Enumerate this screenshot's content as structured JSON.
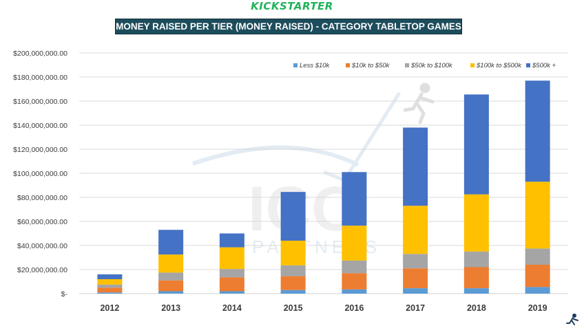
{
  "header": {
    "brand": "KICKSTARTER",
    "title": "MONEY RAISED PER TIER (MONEY RAISED) - CATEGORY TABLETOP GAMES"
  },
  "watermark": {
    "text_main": "ICO",
    "text_sub": "PARTNERS",
    "icon": "running-man-icon"
  },
  "colors": {
    "less_10k": "#5b9bd5",
    "10k_50k": "#ed7d31",
    "50k_100k": "#a5a5a5",
    "100k_500k": "#ffc000",
    "500k_plus": "#4472c4"
  },
  "chart_data": {
    "type": "bar",
    "stacked": true,
    "title": "MONEY RAISED PER TIER (MONEY RAISED) - CATEGORY TABLETOP GAMES",
    "categories": [
      "2012",
      "2013",
      "2014",
      "2015",
      "2016",
      "2017",
      "2018",
      "2019"
    ],
    "yticks": [
      "$-",
      "$20,000,000.00",
      "$40,000,000.00",
      "$60,000,000.00",
      "$80,000,000.00",
      "$100,000,000.00",
      "$120,000,000.00",
      "$140,000,000.00",
      "$160,000,000.00",
      "$180,000,000.00",
      "$200,000,000.00"
    ],
    "ylim": [
      0,
      200000000
    ],
    "grid": true,
    "legend_position": "top-right",
    "series": [
      {
        "name": "Less $10k",
        "color": "#5b9bd5",
        "values": [
          1000000,
          2000000,
          2000000,
          3000000,
          3500000,
          4500000,
          4500000,
          5500000
        ]
      },
      {
        "name": "$10k to $50k",
        "color": "#ed7d31",
        "values": [
          4000000,
          9000000,
          11500000,
          11500000,
          13500000,
          16500000,
          17500000,
          18500000
        ]
      },
      {
        "name": "$50k to $100k",
        "color": "#a5a5a5",
        "values": [
          2500000,
          6500000,
          7000000,
          9000000,
          10500000,
          12000000,
          13000000,
          13500000
        ]
      },
      {
        "name": "$100k to $500k",
        "color": "#ffc000",
        "values": [
          4500000,
          15000000,
          18000000,
          20500000,
          29000000,
          40000000,
          47500000,
          55500000
        ]
      },
      {
        "name": "$500k +",
        "color": "#4472c4",
        "values": [
          4000000,
          20500000,
          11500000,
          40500000,
          44500000,
          65000000,
          83000000,
          84000000
        ]
      }
    ]
  }
}
